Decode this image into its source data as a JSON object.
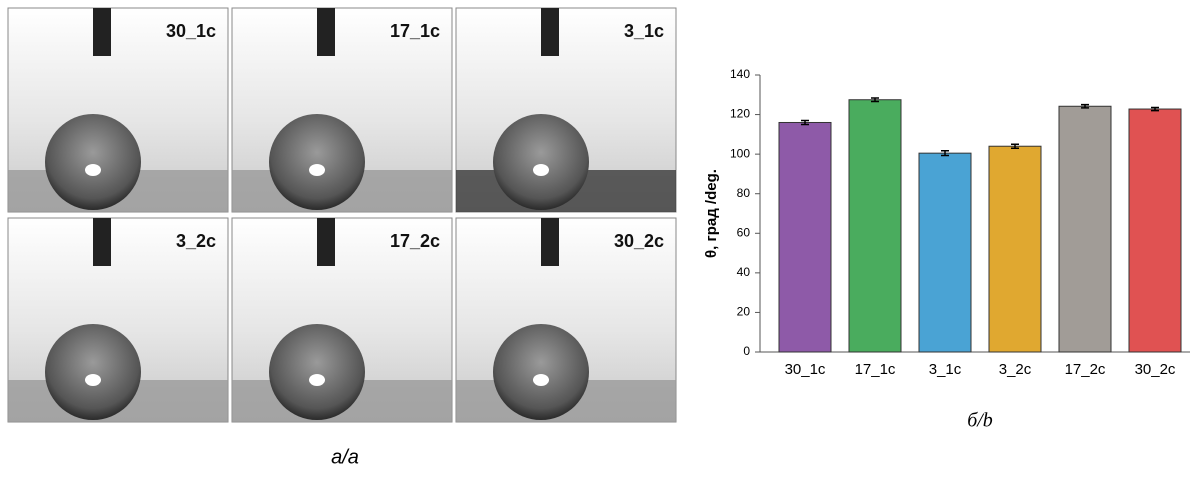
{
  "photos": {
    "labels": [
      "30_1c",
      "17_1c",
      "3_1c",
      "3_2c",
      "17_2c",
      "30_2c"
    ],
    "caption": "а/a"
  },
  "chart_data": {
    "type": "bar",
    "ylabel": "θ, град /deg.",
    "categories": [
      "30_1c",
      "17_1c",
      "3_1c",
      "3_2c",
      "17_2c",
      "30_2c"
    ],
    "values": [
      116,
      127.5,
      100.5,
      104,
      124.2,
      122.8
    ],
    "errors": [
      1,
      0.9,
      1.2,
      1,
      0.8,
      0.8
    ],
    "colors": [
      "#8e5aa8",
      "#4aac5e",
      "#4aa3d4",
      "#e0a830",
      "#a19c97",
      "#e05252"
    ],
    "ylim": [
      0,
      140
    ],
    "yticks": [
      0,
      20,
      40,
      60,
      80,
      100,
      120,
      140
    ],
    "grid": false,
    "caption": "б/b"
  }
}
